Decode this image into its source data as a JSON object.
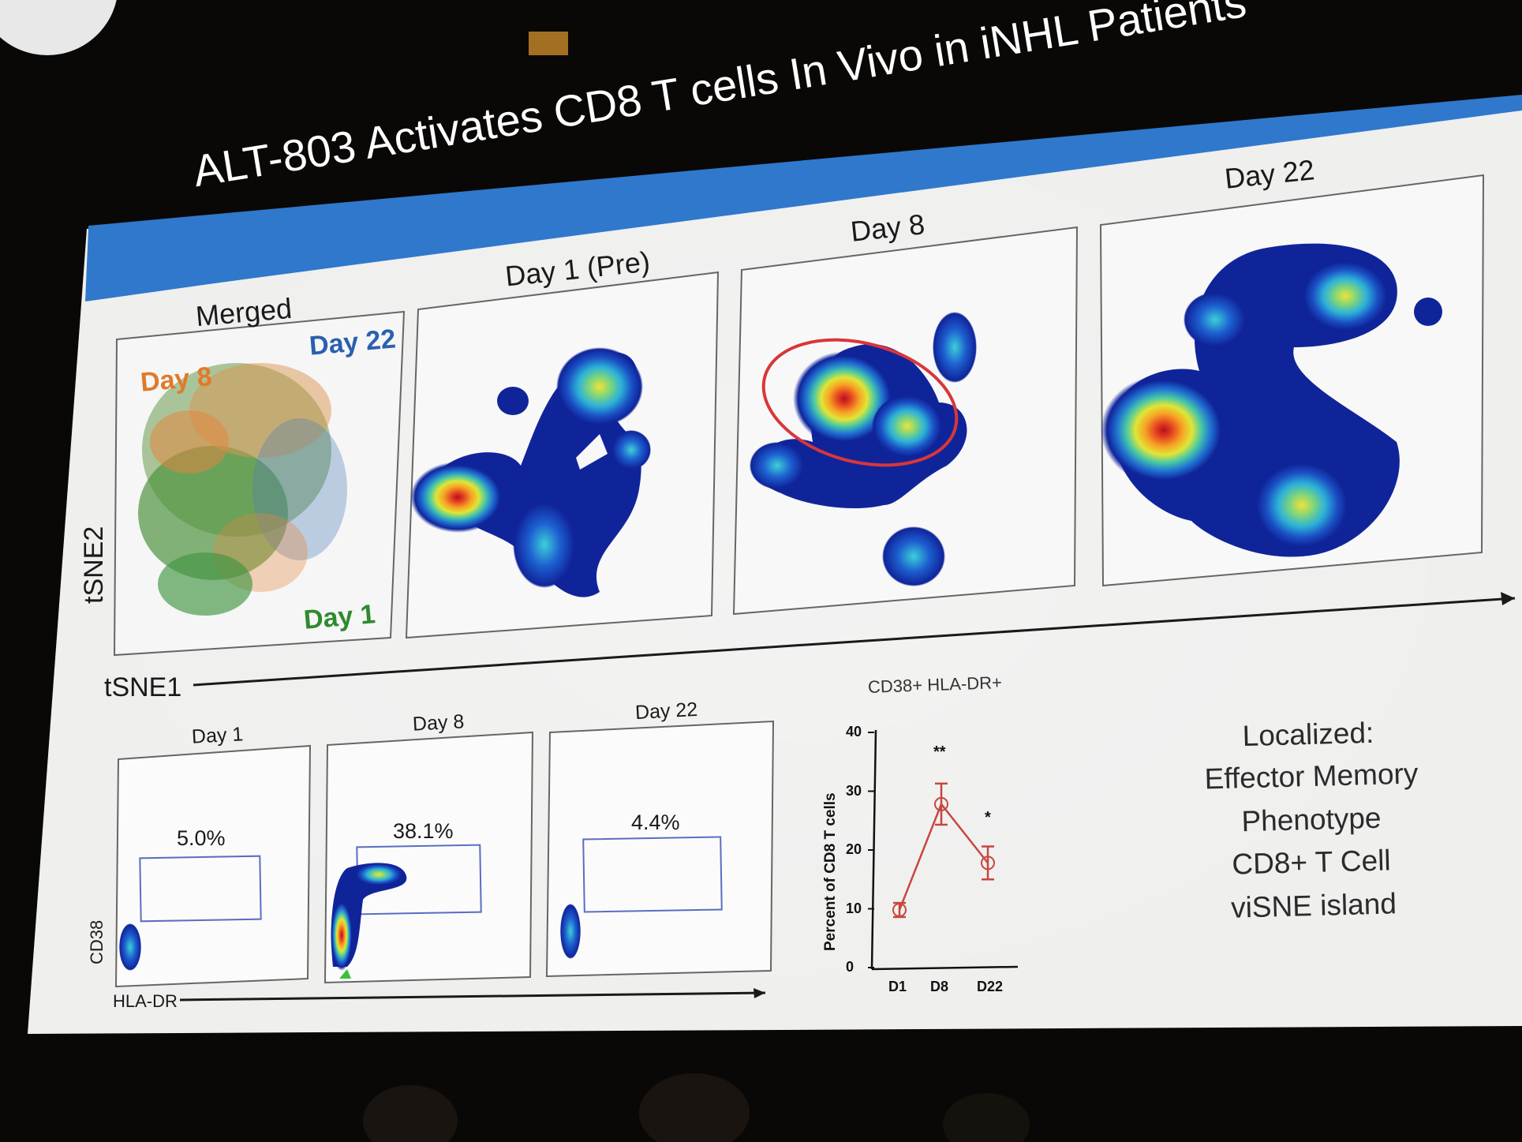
{
  "slide": {
    "title": "ALT-803 Activates CD8 T cells In Vivo in iNHL Patients",
    "top_panels": {
      "merged_label": "Merged",
      "day1_pre_label": "Day 1 (Pre)",
      "day8_label": "Day 8",
      "day22_label": "Day 22",
      "legend": {
        "day8": "Day 8",
        "day22": "Day 22",
        "day1": "Day 1"
      },
      "y_axis": "tSNE2",
      "x_axis": "tSNE1"
    },
    "bottom_panels": {
      "day1_label": "Day 1",
      "day8_label": "Day 8",
      "day22_label": "Day 22",
      "day1_pct": "5.0%",
      "day8_pct": "38.1%",
      "day22_pct": "4.4%",
      "y_axis": "CD38",
      "x_axis": "HLA-DR"
    },
    "graph": {
      "title": "CD38+ HLA-DR+",
      "ylabel": "Percent of CD8 T cells",
      "yticks": [
        "0",
        "10",
        "20",
        "30",
        "40"
      ],
      "xticks": [
        "D1",
        "D8",
        "D22"
      ],
      "sig_d8": "**",
      "sig_d22": "*"
    },
    "right_text": {
      "line1": "Localized:",
      "line2": "Effector Memory",
      "line3": "Phenotype",
      "line4": "CD8+ T Cell",
      "line5": "viSNE island"
    },
    "colors": {
      "banner": "#2f78cc",
      "slide_bg": "#eeeeee",
      "room": "#0a0806",
      "day8": "#e07a2a",
      "day22": "#2a5fb0",
      "day1": "#2e8a2e",
      "line": "#c8463e"
    }
  },
  "chart_data": {
    "type": "line",
    "title": "CD38+ HLA-DR+",
    "xlabel": "",
    "ylabel": "Percent of CD8 T cells",
    "categories": [
      "D1",
      "D8",
      "D22"
    ],
    "values": [
      9.8,
      27.8,
      17.8
    ],
    "error": [
      1.2,
      3.5,
      2.8
    ],
    "ylim": [
      0,
      40
    ]
  }
}
